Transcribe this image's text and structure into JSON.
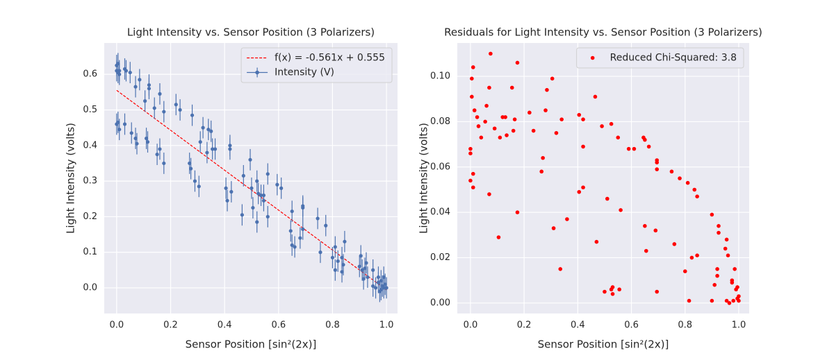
{
  "chart_data": [
    {
      "type": "scatter",
      "title": "Light Intensity vs. Sensor Position (3 Polarizers)",
      "xlabel": "Sensor Position [sin²(2x)]",
      "ylabel": "Light Intensity (volts)",
      "xlim": [
        -0.046,
        1.041
      ],
      "ylim": [
        -0.072,
        0.688
      ],
      "xticks": [
        {
          "value": 0,
          "label": "0.0"
        },
        {
          "value": 0.2,
          "label": "0.2"
        },
        {
          "value": 0.4,
          "label": "0.4"
        },
        {
          "value": 0.6,
          "label": "0.6"
        },
        {
          "value": 0.8,
          "label": "0.8"
        },
        {
          "value": 1,
          "label": "1.0"
        }
      ],
      "yticks": [
        {
          "value": 0,
          "label": "0.0"
        },
        {
          "value": 0.1,
          "label": "0.1"
        },
        {
          "value": 0.2,
          "label": "0.2"
        },
        {
          "value": 0.3,
          "label": "0.3"
        },
        {
          "value": 0.4,
          "label": "0.4"
        },
        {
          "value": 0.5,
          "label": "0.5"
        },
        {
          "value": 0.6,
          "label": "0.6"
        }
      ],
      "grid": true,
      "legend": "upper right",
      "series": [
        {
          "type": "line",
          "name": "f(x) = -0.561x + 0.555",
          "color": "#ff0000",
          "dashed": true,
          "x": [
            0,
            1
          ],
          "values": [
            0.555,
            -0.006
          ]
        },
        {
          "type": "errorbar",
          "name": "Intensity (V)",
          "color": "#4c72b0",
          "yerr": 0.03,
          "x": [
            0.0,
            0.0,
            0.005,
            0.01,
            0.005,
            0.01,
            0.03,
            0.035,
            0.05,
            0.07,
            0.085,
            0.105,
            0.12,
            0.12,
            0.14,
            0.16,
            0.175,
            0.22,
            0.235,
            0.28,
            0.31,
            0.32,
            0.34,
            0.355,
            0.42,
            0.42,
            0.47,
            0.495,
            0.52,
            0.545,
            0.56,
            0.595,
            0.61,
            0.65,
            0.69,
            0.69,
            0.745,
            0.775,
            0.81,
            0.835,
            0.845,
            0.905,
            0.92,
            0.925,
            0.95,
            0.97,
            0.98,
            0.99,
            0.0,
            0.005,
            0.01,
            0.03,
            0.055,
            0.07,
            0.075,
            0.11,
            0.115,
            0.15,
            0.16,
            0.175,
            0.27,
            0.275,
            0.29,
            0.305,
            0.335,
            0.35,
            0.365,
            0.405,
            0.41,
            0.425,
            0.465,
            0.5,
            0.505,
            0.52,
            0.525,
            0.535,
            0.545,
            0.56,
            0.645,
            0.65,
            0.66,
            0.68,
            0.69,
            0.755,
            0.8,
            0.81,
            0.82,
            0.835,
            0.84,
            0.9,
            0.91,
            0.915,
            0.93,
            0.95,
            0.96,
            0.97,
            0.98,
            0.99,
            0.995,
            1.0,
            0.985,
            0.975
          ],
          "values": [
            0.625,
            0.61,
            0.63,
            0.6,
            0.605,
            0.61,
            0.615,
            0.61,
            0.605,
            0.565,
            0.585,
            0.525,
            0.56,
            0.57,
            0.505,
            0.545,
            0.495,
            0.515,
            0.5,
            0.485,
            0.41,
            0.45,
            0.445,
            0.39,
            0.4,
            0.39,
            0.315,
            0.36,
            0.3,
            0.26,
            0.32,
            0.29,
            0.28,
            0.215,
            0.225,
            0.23,
            0.195,
            0.175,
            0.115,
            0.085,
            0.13,
            0.09,
            0.055,
            0.07,
            0.05,
            0.03,
            0.02,
            0.03,
            0.46,
            0.465,
            0.445,
            0.46,
            0.435,
            0.42,
            0.405,
            0.42,
            0.41,
            0.375,
            0.39,
            0.35,
            0.35,
            0.335,
            0.3,
            0.285,
            0.38,
            0.44,
            0.39,
            0.28,
            0.245,
            0.27,
            0.205,
            0.28,
            0.225,
            0.185,
            0.265,
            0.26,
            0.245,
            0.2,
            0.16,
            0.12,
            0.115,
            0.14,
            0.165,
            0.1,
            0.085,
            0.05,
            0.075,
            0.045,
            0.065,
            0.06,
            0.05,
            0.025,
            0.03,
            0.005,
            0.0,
            0.015,
            -0.005,
            0.0,
            0.01,
            0.0,
            0.005,
            -0.01
          ]
        }
      ]
    },
    {
      "type": "scatter",
      "title": "Residuals for Light Intensity vs. Sensor Position (3 Polarizers)",
      "xlabel": "Sensor Position [sin²(2x)]",
      "ylabel": "Light Intensity (volts)",
      "xlim": [
        -0.049,
        1.039
      ],
      "ylim": [
        -0.0046,
        0.1147
      ],
      "xticks": [
        {
          "value": 0,
          "label": "0.0"
        },
        {
          "value": 0.2,
          "label": "0.2"
        },
        {
          "value": 0.4,
          "label": "0.4"
        },
        {
          "value": 0.6,
          "label": "0.6"
        },
        {
          "value": 0.8,
          "label": "0.8"
        },
        {
          "value": 1,
          "label": "1.0"
        }
      ],
      "yticks": [
        {
          "value": 0,
          "label": "0.00"
        },
        {
          "value": 0.02,
          "label": "0.02"
        },
        {
          "value": 0.04,
          "label": "0.04"
        },
        {
          "value": 0.06,
          "label": "0.06"
        },
        {
          "value": 0.08,
          "label": "0.08"
        },
        {
          "value": 0.1,
          "label": "0.10"
        }
      ],
      "grid": true,
      "legend": "upper right",
      "series": [
        {
          "type": "scatter",
          "name": "Reduced Chi-Squared: 3.8",
          "color": "#ff0000",
          "x": [
            0.0,
            0.0,
            0.0,
            0.005,
            0.005,
            0.01,
            0.01,
            0.015,
            0.01,
            0.025,
            0.03,
            0.04,
            0.055,
            0.06,
            0.07,
            0.07,
            0.075,
            0.09,
            0.105,
            0.11,
            0.12,
            0.13,
            0.135,
            0.155,
            0.16,
            0.165,
            0.175,
            0.175,
            0.22,
            0.235,
            0.265,
            0.27,
            0.28,
            0.285,
            0.305,
            0.31,
            0.32,
            0.335,
            0.34,
            0.36,
            0.405,
            0.405,
            0.42,
            0.42,
            0.42,
            0.465,
            0.47,
            0.49,
            0.5,
            0.51,
            0.525,
            0.525,
            0.53,
            0.53,
            0.55,
            0.555,
            0.56,
            0.59,
            0.61,
            0.645,
            0.65,
            0.65,
            0.655,
            0.665,
            0.69,
            0.695,
            0.695,
            0.695,
            0.695,
            0.75,
            0.76,
            0.78,
            0.8,
            0.81,
            0.815,
            0.825,
            0.835,
            0.845,
            0.845,
            0.9,
            0.9,
            0.91,
            0.92,
            0.92,
            0.925,
            0.925,
            0.95,
            0.955,
            0.955,
            0.96,
            0.965,
            0.975,
            0.975,
            0.98,
            0.985,
            0.99,
            0.995,
            0.995,
            1.0,
            1.0
          ],
          "values": [
            0.068,
            0.066,
            0.054,
            0.099,
            0.091,
            0.051,
            0.057,
            0.085,
            0.104,
            0.082,
            0.078,
            0.073,
            0.08,
            0.087,
            0.048,
            0.095,
            0.11,
            0.077,
            0.029,
            0.073,
            0.082,
            0.082,
            0.074,
            0.095,
            0.076,
            0.081,
            0.106,
            0.04,
            0.084,
            0.076,
            0.058,
            0.064,
            0.085,
            0.094,
            0.099,
            0.033,
            0.075,
            0.015,
            0.081,
            0.037,
            0.083,
            0.049,
            0.081,
            0.051,
            0.069,
            0.091,
            0.027,
            0.078,
            0.005,
            0.046,
            0.079,
            0.006,
            0.004,
            0.007,
            0.073,
            0.006,
            0.041,
            0.068,
            0.068,
            0.073,
            0.034,
            0.072,
            0.023,
            0.069,
            0.032,
            0.063,
            0.062,
            0.059,
            0.005,
            0.058,
            0.026,
            0.055,
            0.014,
            0.053,
            0.001,
            0.02,
            0.05,
            0.047,
            0.021,
            0.039,
            0.001,
            0.008,
            0.015,
            0.012,
            0.034,
            0.031,
            0.024,
            0.028,
            0.001,
            0.021,
            0.0,
            0.009,
            0.01,
            0.001,
            0.015,
            0.006,
            0.007,
            0.002,
            0.003,
            0.001
          ]
        }
      ]
    }
  ]
}
